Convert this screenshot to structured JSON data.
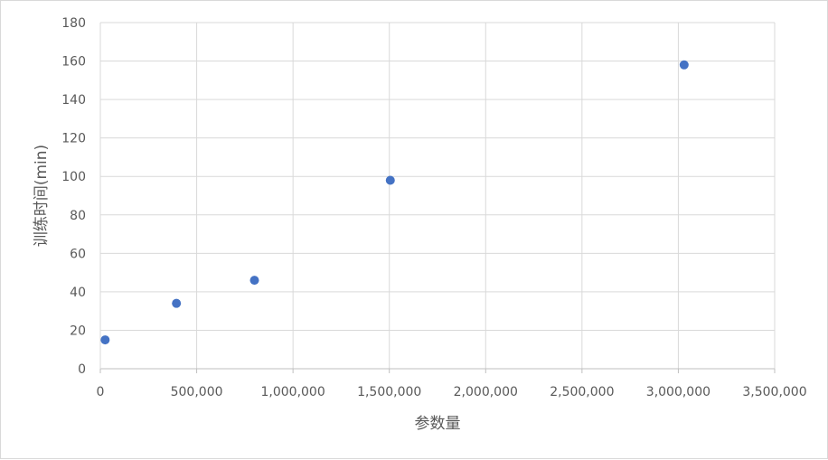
{
  "chart_data": {
    "type": "scatter",
    "title": "",
    "xlabel": "参数量",
    "ylabel": "训练时间(min)",
    "xlim": [
      0,
      3500000
    ],
    "ylim": [
      0,
      180
    ],
    "x_ticks": [
      "0",
      "500,000",
      "1,000,000",
      "1,500,000",
      "2,000,000",
      "2,500,000",
      "3,000,000",
      "3,500,000"
    ],
    "y_ticks": [
      "0",
      "20",
      "40",
      "60",
      "80",
      "100",
      "120",
      "140",
      "160",
      "180"
    ],
    "grid": true,
    "legend": "none",
    "marker_color": "#4472c4",
    "points": [
      {
        "x": 25000,
        "y": 15
      },
      {
        "x": 395000,
        "y": 34
      },
      {
        "x": 800000,
        "y": 46
      },
      {
        "x": 1505000,
        "y": 98
      },
      {
        "x": 3030000,
        "y": 158
      }
    ]
  }
}
